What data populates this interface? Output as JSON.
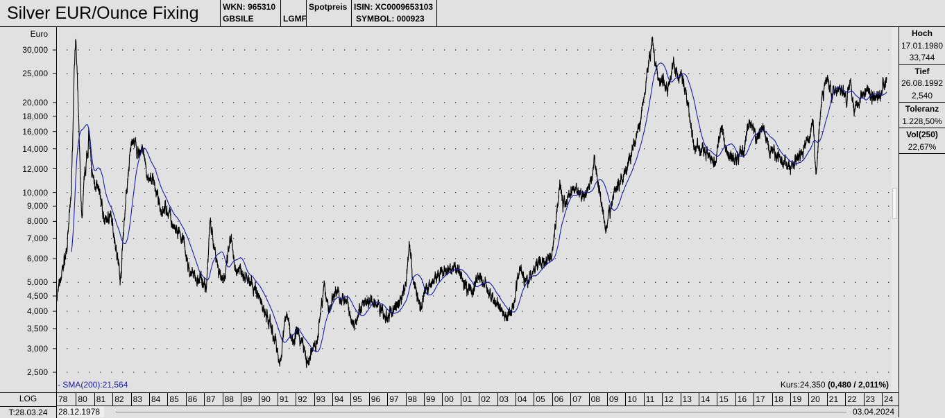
{
  "header": {
    "title": "Silver EUR/Ounce Fixing",
    "wkn": "WKN: 965310",
    "code": "GBSILE",
    "exchange": "LGMF",
    "price_type": "Spotpreis",
    "isin": "ISIN: XC0009653103",
    "symbol": "SYMBOL: 000923"
  },
  "side_panel": {
    "high_label": "Hoch",
    "high_date": "17.01.1980",
    "high_value": "33,744",
    "low_label": "Tief",
    "low_date": "26.08.1992",
    "low_value": "2,540",
    "tolerance_label": "Toleranz",
    "tolerance_value": "1.228,50%",
    "vol_label": "Vol(250)",
    "vol_value": "22,67%"
  },
  "footer": {
    "scale_mode": "LOG",
    "trade_date": "T:28.03.24",
    "start_date": "28.12.1978",
    "end_date": "03.04.2024"
  },
  "colors": {
    "price": "#000000",
    "sma": "#1a1aa8",
    "background": "#e1e1e1"
  },
  "chart_data": {
    "type": "line",
    "yscale": "log",
    "ylabel": "Euro",
    "ylim": [
      2400,
      34500
    ],
    "xlim": [
      1979.0,
      2024.3
    ],
    "yticks": [
      "2,500",
      "3,000",
      "3,500",
      "4,000",
      "4,500",
      "5,000",
      "6,000",
      "7,000",
      "8,000",
      "9,000",
      "10,000",
      "12,000",
      "14,000",
      "16,000",
      "18,000",
      "20,000",
      "25,000",
      "30,000"
    ],
    "ytick_values": [
      2500,
      3000,
      3500,
      4000,
      4500,
      5000,
      6000,
      7000,
      8000,
      9000,
      10000,
      12000,
      14000,
      16000,
      18000,
      20000,
      25000,
      30000
    ],
    "xticks": [
      "78",
      "80",
      "81",
      "82",
      "83",
      "84",
      "85",
      "86",
      "87",
      "88",
      "89",
      "90",
      "91",
      "92",
      "93",
      "94",
      "95",
      "96",
      "97",
      "98",
      "99",
      "00",
      "01",
      "02",
      "03",
      "04",
      "05",
      "06",
      "07",
      "08",
      "09",
      "10",
      "11",
      "12",
      "13",
      "14",
      "15",
      "16",
      "17",
      "18",
      "19",
      "20",
      "21",
      "22",
      "23",
      "24"
    ],
    "grid": true,
    "sma_label": "- SMA(200):21,564",
    "quote_label": "Kurs:24,350",
    "quote_change": "(0,480 / 2,011%)",
    "series": [
      {
        "name": "Kurs",
        "x": [
          1979.0,
          1979.3,
          1979.57,
          1979.8,
          1979.95,
          1980.02,
          1980.14,
          1980.29,
          1980.36,
          1980.52,
          1980.7,
          1980.74,
          1980.89,
          1981.12,
          1981.39,
          1981.58,
          1981.88,
          1982.07,
          1982.26,
          1982.48,
          1982.64,
          1982.79,
          1982.94,
          1983.09,
          1983.28,
          1983.47,
          1983.66,
          1983.85,
          1984.04,
          1984.23,
          1984.42,
          1984.61,
          1984.91,
          1985.17,
          1985.36,
          1985.67,
          1985.93,
          1986.12,
          1986.31,
          1986.69,
          1986.95,
          1987.14,
          1987.26,
          1987.37,
          1987.48,
          1987.64,
          1987.83,
          1988.02,
          1988.2,
          1988.39,
          1988.51,
          1988.7,
          1988.96,
          1989.23,
          1989.53,
          1989.91,
          1990.29,
          1990.67,
          1990.97,
          1991.16,
          1991.35,
          1991.58,
          1991.8,
          1992.11,
          1992.41,
          1992.71,
          1992.94,
          1993.24,
          1993.43,
          1993.62,
          1993.89,
          1994.15,
          1994.45,
          1994.83,
          1995.21,
          1995.4,
          1995.78,
          1996.16,
          1996.54,
          1996.92,
          1997.3,
          1997.67,
          1998.05,
          1998.24,
          1998.43,
          1998.81,
          1999.08,
          1999.38,
          1999.76,
          2000.14,
          2000.52,
          2000.89,
          2001.27,
          2001.65,
          2002.03,
          2002.41,
          2002.79,
          2003.17,
          2003.55,
          2003.92,
          2004.3,
          2004.61,
          2004.87,
          2005.25,
          2005.63,
          2006.01,
          2006.2,
          2006.46,
          2006.65,
          2006.95,
          2007.33,
          2007.71,
          2008.09,
          2008.36,
          2008.55,
          2008.77,
          2008.96,
          2009.15,
          2009.42,
          2009.68,
          2009.98,
          2010.36,
          2010.55,
          2010.82,
          2011.05,
          2011.31,
          2011.5,
          2011.69,
          2011.88,
          2012.07,
          2012.33,
          2012.64,
          2012.94,
          2013.2,
          2013.39,
          2013.58,
          2013.77,
          2014.08,
          2014.34,
          2014.61,
          2014.91,
          2015.29,
          2015.59,
          2015.86,
          2016.23,
          2016.5,
          2016.8,
          2016.99,
          2017.18,
          2017.56,
          2017.94,
          2018.32,
          2018.7,
          2019.08,
          2019.45,
          2019.83,
          2020.14,
          2020.29,
          2020.44,
          2020.59,
          2020.78,
          2021.05,
          2021.35,
          2021.73,
          2022.11,
          2022.3,
          2022.56,
          2022.88,
          2023.24,
          2023.62,
          2023.92,
          2024.11,
          2024.3
        ],
        "y": [
          4430,
          5490,
          6610,
          10420,
          26600,
          33744,
          20900,
          10980,
          7980,
          11590,
          14000,
          16400,
          11590,
          10700,
          9620,
          7980,
          8410,
          7560,
          6440,
          5060,
          7560,
          9880,
          12200,
          15100,
          14350,
          13250,
          14350,
          11900,
          10700,
          11300,
          10100,
          8880,
          8880,
          8410,
          7560,
          7160,
          6790,
          5790,
          5340,
          5060,
          5200,
          4800,
          6100,
          7980,
          7160,
          6440,
          5490,
          5200,
          5200,
          6440,
          7000,
          5490,
          5630,
          5340,
          4930,
          4670,
          4090,
          3580,
          3130,
          2600,
          3390,
          3980,
          3210,
          3390,
          3130,
          2600,
          2970,
          3210,
          4200,
          4800,
          3980,
          4670,
          4550,
          4200,
          3580,
          3980,
          4200,
          4310,
          4200,
          3770,
          3980,
          4310,
          4800,
          7000,
          5200,
          4090,
          4670,
          4930,
          5200,
          5340,
          5490,
          5630,
          4930,
          4670,
          5200,
          4930,
          4310,
          4200,
          3770,
          4200,
          5790,
          4930,
          5200,
          5790,
          5900,
          6200,
          7560,
          10980,
          8880,
          9880,
          10420,
          9620,
          10420,
          12900,
          10700,
          8880,
          7160,
          8410,
          9880,
          10700,
          11590,
          13250,
          15100,
          16850,
          21400,
          27300,
          32000,
          27300,
          23200,
          24500,
          22000,
          26600,
          24500,
          23800,
          20900,
          17300,
          14000,
          14000,
          13600,
          13250,
          12600,
          16400,
          13600,
          12900,
          13250,
          14000,
          17300,
          16400,
          15100,
          16400,
          13600,
          13250,
          12600,
          12200,
          13250,
          14000,
          15600,
          17800,
          11300,
          15600,
          20900,
          24500,
          21400,
          22000,
          20900,
          23800,
          18800,
          21400,
          22000,
          20900,
          21400,
          22600,
          24350
        ]
      },
      {
        "name": "SMA(200)",
        "derived_from": "Kurs",
        "window": 200
      }
    ]
  }
}
